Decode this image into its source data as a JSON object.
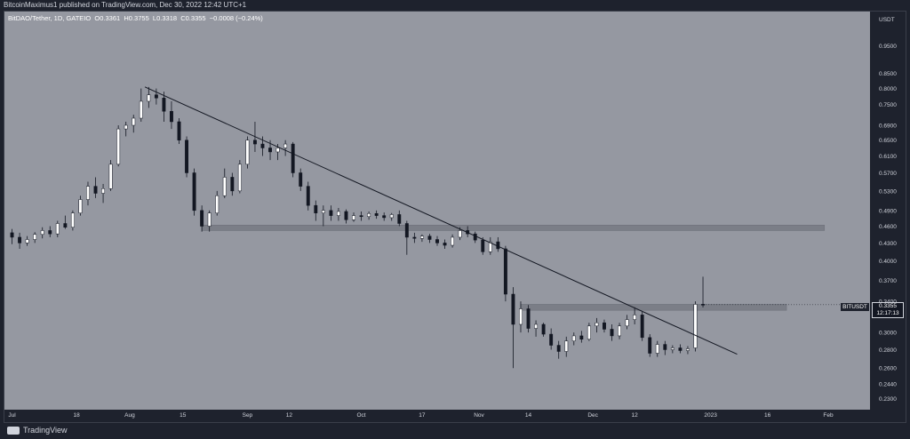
{
  "header": {
    "publisher_text": "BitcoinMaximus1 published on TradingView.com, Dec 30, 2022 12:42 UTC+1"
  },
  "legend": {
    "symbol": "BitDAO/Tether, 1D, GATEIO",
    "o_label": "O",
    "o_value": "0.3361",
    "h_label": "H",
    "h_value": "0.3755",
    "l_label": "L",
    "l_value": "0.3318",
    "c_label": "C",
    "c_value": "0.3355",
    "change": "−0.0008 (−0.24%)"
  },
  "axis": {
    "currency": "USDT"
  },
  "price_label": {
    "symbol": "BITUSDT",
    "price": "0.3355",
    "countdown": "12:17:13"
  },
  "footer": {
    "brand": "TradingView"
  },
  "colors": {
    "plot_bg": "#9598a1",
    "panel_bg": "#1e222d",
    "candle_up": "#ffffff",
    "candle_down": "#131722",
    "zone": "#7b7e87",
    "trendline": "#131722"
  },
  "chart_data": {
    "type": "candlestick",
    "symbol": "BitDAO/Tether",
    "timeframe": "1D",
    "exchange": "GATEIO",
    "y_scale": "log",
    "ylim": [
      0.22,
      1.09
    ],
    "y_ticks": [
      "0.9500",
      "0.8500",
      "0.8000",
      "0.7500",
      "0.6900",
      "0.6500",
      "0.6100",
      "0.5700",
      "0.5300",
      "0.4900",
      "0.4600",
      "0.4300",
      "0.4000",
      "0.3700",
      "0.3400",
      "0.3000",
      "0.2800",
      "0.2600",
      "0.2440",
      "0.2300"
    ],
    "x_ticks": [
      "Jul",
      "18",
      "Aug",
      "15",
      "Sep",
      "12",
      "Oct",
      "17",
      "Nov",
      "14",
      "Dec",
      "12",
      "2023",
      "16",
      "Feb"
    ],
    "candles": [
      {
        "date": "2022-07-01",
        "o": 0.448,
        "h": 0.455,
        "l": 0.428,
        "c": 0.44
      },
      {
        "date": "2022-07-03",
        "o": 0.44,
        "h": 0.448,
        "l": 0.42,
        "c": 0.43
      },
      {
        "date": "2022-07-05",
        "o": 0.43,
        "h": 0.442,
        "l": 0.425,
        "c": 0.436
      },
      {
        "date": "2022-07-07",
        "o": 0.436,
        "h": 0.449,
        "l": 0.43,
        "c": 0.445
      },
      {
        "date": "2022-07-09",
        "o": 0.445,
        "h": 0.458,
        "l": 0.438,
        "c": 0.452
      },
      {
        "date": "2022-07-11",
        "o": 0.452,
        "h": 0.46,
        "l": 0.44,
        "c": 0.446
      },
      {
        "date": "2022-07-13",
        "o": 0.446,
        "h": 0.47,
        "l": 0.44,
        "c": 0.465
      },
      {
        "date": "2022-07-15",
        "o": 0.465,
        "h": 0.48,
        "l": 0.455,
        "c": 0.458
      },
      {
        "date": "2022-07-17",
        "o": 0.458,
        "h": 0.49,
        "l": 0.452,
        "c": 0.485
      },
      {
        "date": "2022-07-19",
        "o": 0.485,
        "h": 0.52,
        "l": 0.48,
        "c": 0.512
      },
      {
        "date": "2022-07-21",
        "o": 0.512,
        "h": 0.55,
        "l": 0.5,
        "c": 0.54
      },
      {
        "date": "2022-07-23",
        "o": 0.54,
        "h": 0.56,
        "l": 0.515,
        "c": 0.525
      },
      {
        "date": "2022-07-25",
        "o": 0.525,
        "h": 0.545,
        "l": 0.505,
        "c": 0.535
      },
      {
        "date": "2022-07-27",
        "o": 0.535,
        "h": 0.6,
        "l": 0.53,
        "c": 0.59
      },
      {
        "date": "2022-07-29",
        "o": 0.59,
        "h": 0.69,
        "l": 0.585,
        "c": 0.68
      },
      {
        "date": "2022-07-31",
        "o": 0.68,
        "h": 0.7,
        "l": 0.66,
        "c": 0.69
      },
      {
        "date": "2022-08-02",
        "o": 0.69,
        "h": 0.72,
        "l": 0.67,
        "c": 0.71
      },
      {
        "date": "2022-08-04",
        "o": 0.71,
        "h": 0.8,
        "l": 0.7,
        "c": 0.76
      },
      {
        "date": "2022-08-06",
        "o": 0.76,
        "h": 0.805,
        "l": 0.74,
        "c": 0.78
      },
      {
        "date": "2022-08-08",
        "o": 0.78,
        "h": 0.8,
        "l": 0.75,
        "c": 0.77
      },
      {
        "date": "2022-08-10",
        "o": 0.77,
        "h": 0.79,
        "l": 0.7,
        "c": 0.73
      },
      {
        "date": "2022-08-12",
        "o": 0.73,
        "h": 0.76,
        "l": 0.68,
        "c": 0.7
      },
      {
        "date": "2022-08-14",
        "o": 0.7,
        "h": 0.71,
        "l": 0.64,
        "c": 0.65
      },
      {
        "date": "2022-08-16",
        "o": 0.65,
        "h": 0.66,
        "l": 0.56,
        "c": 0.57
      },
      {
        "date": "2022-08-18",
        "o": 0.57,
        "h": 0.58,
        "l": 0.48,
        "c": 0.49
      },
      {
        "date": "2022-08-20",
        "o": 0.49,
        "h": 0.5,
        "l": 0.45,
        "c": 0.46
      },
      {
        "date": "2022-08-22",
        "o": 0.46,
        "h": 0.49,
        "l": 0.45,
        "c": 0.485
      },
      {
        "date": "2022-08-24",
        "o": 0.485,
        "h": 0.53,
        "l": 0.48,
        "c": 0.52
      },
      {
        "date": "2022-08-26",
        "o": 0.52,
        "h": 0.58,
        "l": 0.515,
        "c": 0.56
      },
      {
        "date": "2022-08-28",
        "o": 0.56,
        "h": 0.57,
        "l": 0.52,
        "c": 0.53
      },
      {
        "date": "2022-08-30",
        "o": 0.53,
        "h": 0.6,
        "l": 0.525,
        "c": 0.59
      },
      {
        "date": "2022-09-01",
        "o": 0.59,
        "h": 0.66,
        "l": 0.58,
        "c": 0.65
      },
      {
        "date": "2022-09-03",
        "o": 0.65,
        "h": 0.7,
        "l": 0.62,
        "c": 0.64
      },
      {
        "date": "2022-09-05",
        "o": 0.64,
        "h": 0.66,
        "l": 0.61,
        "c": 0.63
      },
      {
        "date": "2022-09-07",
        "o": 0.63,
        "h": 0.65,
        "l": 0.6,
        "c": 0.62
      },
      {
        "date": "2022-09-09",
        "o": 0.62,
        "h": 0.64,
        "l": 0.6,
        "c": 0.63
      },
      {
        "date": "2022-09-11",
        "o": 0.63,
        "h": 0.65,
        "l": 0.61,
        "c": 0.64
      },
      {
        "date": "2022-09-13",
        "o": 0.64,
        "h": 0.645,
        "l": 0.56,
        "c": 0.57
      },
      {
        "date": "2022-09-15",
        "o": 0.57,
        "h": 0.58,
        "l": 0.53,
        "c": 0.54
      },
      {
        "date": "2022-09-17",
        "o": 0.54,
        "h": 0.55,
        "l": 0.49,
        "c": 0.5
      },
      {
        "date": "2022-09-19",
        "o": 0.5,
        "h": 0.51,
        "l": 0.47,
        "c": 0.485
      },
      {
        "date": "2022-09-21",
        "o": 0.485,
        "h": 0.5,
        "l": 0.46,
        "c": 0.49
      },
      {
        "date": "2022-09-23",
        "o": 0.49,
        "h": 0.5,
        "l": 0.47,
        "c": 0.48
      },
      {
        "date": "2022-09-25",
        "o": 0.48,
        "h": 0.495,
        "l": 0.47,
        "c": 0.488
      },
      {
        "date": "2022-09-27",
        "o": 0.488,
        "h": 0.492,
        "l": 0.465,
        "c": 0.472
      },
      {
        "date": "2022-09-29",
        "o": 0.472,
        "h": 0.486,
        "l": 0.468,
        "c": 0.48
      },
      {
        "date": "2022-10-01",
        "o": 0.48,
        "h": 0.488,
        "l": 0.47,
        "c": 0.478
      },
      {
        "date": "2022-10-03",
        "o": 0.478,
        "h": 0.488,
        "l": 0.472,
        "c": 0.484
      },
      {
        "date": "2022-10-05",
        "o": 0.484,
        "h": 0.49,
        "l": 0.474,
        "c": 0.48
      },
      {
        "date": "2022-10-07",
        "o": 0.48,
        "h": 0.486,
        "l": 0.47,
        "c": 0.476
      },
      {
        "date": "2022-10-09",
        "o": 0.476,
        "h": 0.485,
        "l": 0.47,
        "c": 0.482
      },
      {
        "date": "2022-10-11",
        "o": 0.482,
        "h": 0.49,
        "l": 0.46,
        "c": 0.465
      },
      {
        "date": "2022-10-13",
        "o": 0.465,
        "h": 0.47,
        "l": 0.41,
        "c": 0.44
      },
      {
        "date": "2022-10-15",
        "o": 0.44,
        "h": 0.448,
        "l": 0.43,
        "c": 0.438
      },
      {
        "date": "2022-10-17",
        "o": 0.438,
        "h": 0.445,
        "l": 0.432,
        "c": 0.442
      },
      {
        "date": "2022-10-19",
        "o": 0.442,
        "h": 0.446,
        "l": 0.43,
        "c": 0.436
      },
      {
        "date": "2022-10-21",
        "o": 0.436,
        "h": 0.442,
        "l": 0.425,
        "c": 0.43
      },
      {
        "date": "2022-10-23",
        "o": 0.43,
        "h": 0.436,
        "l": 0.42,
        "c": 0.426
      },
      {
        "date": "2022-10-25",
        "o": 0.426,
        "h": 0.445,
        "l": 0.422,
        "c": 0.44
      },
      {
        "date": "2022-10-27",
        "o": 0.44,
        "h": 0.458,
        "l": 0.435,
        "c": 0.452
      },
      {
        "date": "2022-10-29",
        "o": 0.452,
        "h": 0.46,
        "l": 0.44,
        "c": 0.446
      },
      {
        "date": "2022-10-31",
        "o": 0.446,
        "h": 0.45,
        "l": 0.43,
        "c": 0.435
      },
      {
        "date": "2022-11-02",
        "o": 0.435,
        "h": 0.44,
        "l": 0.41,
        "c": 0.415
      },
      {
        "date": "2022-11-04",
        "o": 0.415,
        "h": 0.44,
        "l": 0.41,
        "c": 0.432
      },
      {
        "date": "2022-11-06",
        "o": 0.432,
        "h": 0.44,
        "l": 0.415,
        "c": 0.42
      },
      {
        "date": "2022-11-08",
        "o": 0.42,
        "h": 0.425,
        "l": 0.34,
        "c": 0.35
      },
      {
        "date": "2022-11-10",
        "o": 0.35,
        "h": 0.36,
        "l": 0.26,
        "c": 0.31
      },
      {
        "date": "2022-11-12",
        "o": 0.31,
        "h": 0.34,
        "l": 0.3,
        "c": 0.33
      },
      {
        "date": "2022-11-14",
        "o": 0.33,
        "h": 0.335,
        "l": 0.3,
        "c": 0.305
      },
      {
        "date": "2022-11-16",
        "o": 0.305,
        "h": 0.315,
        "l": 0.295,
        "c": 0.31
      },
      {
        "date": "2022-11-18",
        "o": 0.31,
        "h": 0.312,
        "l": 0.295,
        "c": 0.298
      },
      {
        "date": "2022-11-20",
        "o": 0.298,
        "h": 0.305,
        "l": 0.28,
        "c": 0.285
      },
      {
        "date": "2022-11-22",
        "o": 0.285,
        "h": 0.29,
        "l": 0.27,
        "c": 0.278
      },
      {
        "date": "2022-11-24",
        "o": 0.278,
        "h": 0.295,
        "l": 0.272,
        "c": 0.29
      },
      {
        "date": "2022-11-26",
        "o": 0.29,
        "h": 0.3,
        "l": 0.285,
        "c": 0.296
      },
      {
        "date": "2022-11-28",
        "o": 0.296,
        "h": 0.302,
        "l": 0.288,
        "c": 0.292
      },
      {
        "date": "2022-11-30",
        "o": 0.292,
        "h": 0.312,
        "l": 0.29,
        "c": 0.308
      },
      {
        "date": "2022-12-02",
        "o": 0.308,
        "h": 0.318,
        "l": 0.3,
        "c": 0.312
      },
      {
        "date": "2022-12-04",
        "o": 0.312,
        "h": 0.316,
        "l": 0.3,
        "c": 0.304
      },
      {
        "date": "2022-12-06",
        "o": 0.304,
        "h": 0.31,
        "l": 0.29,
        "c": 0.296
      },
      {
        "date": "2022-12-08",
        "o": 0.296,
        "h": 0.312,
        "l": 0.292,
        "c": 0.308
      },
      {
        "date": "2022-12-10",
        "o": 0.308,
        "h": 0.322,
        "l": 0.304,
        "c": 0.316
      },
      {
        "date": "2022-12-12",
        "o": 0.316,
        "h": 0.332,
        "l": 0.31,
        "c": 0.322
      },
      {
        "date": "2022-12-14",
        "o": 0.322,
        "h": 0.326,
        "l": 0.29,
        "c": 0.294
      },
      {
        "date": "2022-12-16",
        "o": 0.294,
        "h": 0.298,
        "l": 0.272,
        "c": 0.276
      },
      {
        "date": "2022-12-18",
        "o": 0.276,
        "h": 0.29,
        "l": 0.272,
        "c": 0.286
      },
      {
        "date": "2022-12-20",
        "o": 0.286,
        "h": 0.29,
        "l": 0.274,
        "c": 0.28
      },
      {
        "date": "2022-12-22",
        "o": 0.28,
        "h": 0.285,
        "l": 0.276,
        "c": 0.282
      },
      {
        "date": "2022-12-24",
        "o": 0.282,
        "h": 0.286,
        "l": 0.276,
        "c": 0.279
      },
      {
        "date": "2022-12-26",
        "o": 0.279,
        "h": 0.284,
        "l": 0.275,
        "c": 0.281
      },
      {
        "date": "2022-12-28",
        "o": 0.282,
        "h": 0.34,
        "l": 0.278,
        "c": 0.336
      },
      {
        "date": "2022-12-30",
        "o": 0.3361,
        "h": 0.3755,
        "l": 0.3318,
        "c": 0.3355
      }
    ],
    "annotations": [
      {
        "type": "trendline",
        "from": {
          "date": "2022-08-05",
          "price": 0.805
        },
        "to": {
          "date": "2023-01-08",
          "price": 0.275
        }
      },
      {
        "type": "horizontal_zone",
        "from_date": "2022-08-20",
        "to_date": "2023-01-31",
        "low": 0.452,
        "high": 0.462
      },
      {
        "type": "horizontal_zone",
        "from_date": "2022-11-12",
        "to_date": "2023-01-21",
        "low": 0.328,
        "high": 0.336
      }
    ]
  }
}
